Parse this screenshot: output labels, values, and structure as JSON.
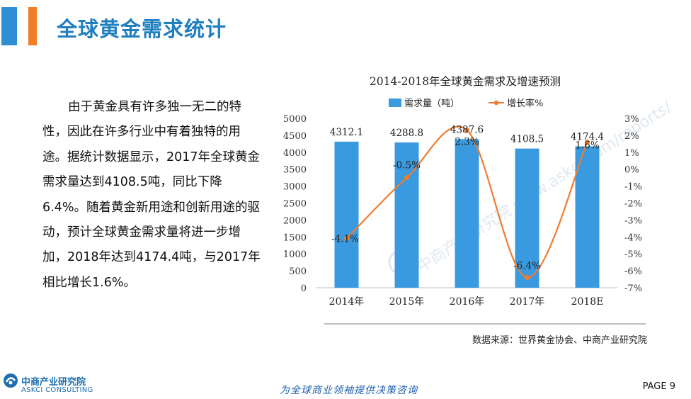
{
  "page": {
    "title": "全球黄金需求统计",
    "body_text": "由于黄金具有许多独一无二的特性，因此在许多行业中有着独特的用途。据统计数据显示，2017年全球黄金需求量达到4108.5吨，同比下降6.4%。随着黄金新用途和创新用途的驱动，预计全球黄金需求量将进一步增加，2018年达到4174.4吨，与2017年相比增长1.6%。",
    "source": "数据来源：世界黄金协会、中商产业研究院",
    "logo_cn": "中商产业研究院",
    "logo_en": "ASKCI CONSULTING",
    "slogan": "为全球商业领袖提供决策咨询",
    "page_number": "PAGE  9",
    "watermark": "中商产业研究院 www.askci.com/reports/"
  },
  "colors": {
    "accent_blue": "#2e8fd4",
    "accent_orange": "#f07e26",
    "title_blue": "#1f7fbf",
    "bar_blue": "#3a9ae0",
    "line_orange": "#ed7d31"
  },
  "chart_data": {
    "type": "bar",
    "title": "2014-2018年全球黄金需求及增速预测",
    "categories": [
      "2014年",
      "2015年",
      "2016年",
      "2017年",
      "2018E"
    ],
    "series": [
      {
        "name": "需求量（吨）",
        "type": "bar",
        "axis": "left",
        "values": [
          4312.1,
          4288.8,
          4387.6,
          4108.5,
          4174.4
        ],
        "labels": [
          "4312.1",
          "4288.8",
          "4387.6",
          "4108.5",
          "4174.4"
        ]
      },
      {
        "name": "增长率%",
        "type": "line",
        "smooth": true,
        "axis": "right",
        "values": [
          -4.1,
          -0.5,
          2.3,
          -6.4,
          1.6
        ],
        "labels": [
          "-4.1%",
          "-0.5%",
          "2.3%",
          "-6.4%",
          "1.6%"
        ]
      }
    ],
    "ylim_left": [
      0,
      5000
    ],
    "yticks_left": [
      "0",
      "500",
      "1000",
      "1500",
      "2000",
      "2500",
      "3000",
      "3500",
      "4000",
      "4500",
      "5000"
    ],
    "ylim_right": [
      -7,
      3
    ],
    "yticks_right": [
      "-7%",
      "-6%",
      "-5%",
      "-4%",
      "-3%",
      "-2%",
      "-1%",
      "0%",
      "1%",
      "2%",
      "3%"
    ],
    "legend_position": "top",
    "grid": false
  }
}
